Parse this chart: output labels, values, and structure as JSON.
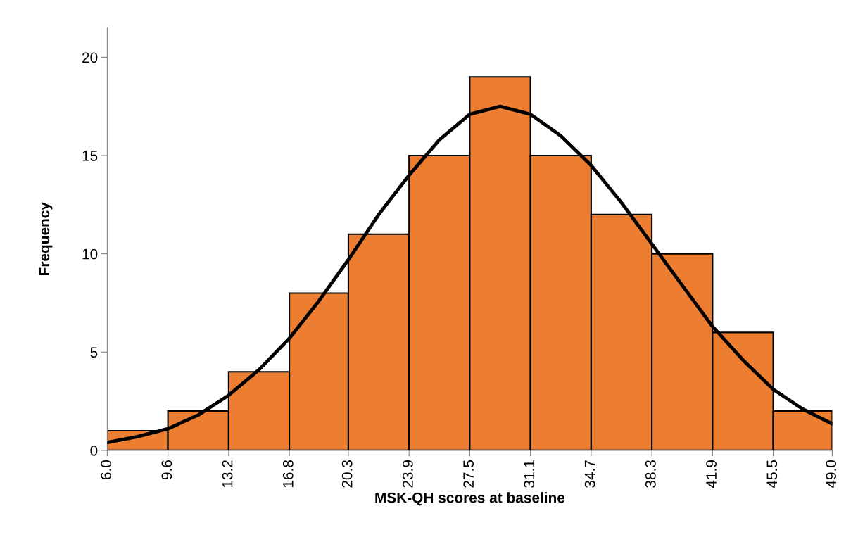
{
  "chart_data": {
    "type": "histogram",
    "xlabel": "MSK-QH scores at baseline",
    "ylabel": "Frequency",
    "bins": [
      6.0,
      9.6,
      13.2,
      16.8,
      20.3,
      23.9,
      27.5,
      31.1,
      34.7,
      38.3,
      41.9,
      45.5,
      49.0
    ],
    "series": [
      {
        "type": "histogram",
        "color": "#ed7d31",
        "values": [
          1,
          2,
          4,
          8,
          11,
          15,
          19,
          15,
          12,
          10,
          6,
          2
        ]
      },
      {
        "type": "line",
        "color": "#000000",
        "x": [
          6.0,
          7.8,
          9.6,
          11.4,
          13.2,
          15.0,
          16.8,
          18.55,
          20.3,
          22.1,
          23.9,
          25.7,
          27.5,
          29.3,
          31.1,
          32.9,
          34.7,
          36.5,
          38.3,
          40.1,
          41.9,
          43.7,
          45.5,
          47.25,
          49.0
        ],
        "values": [
          0.4,
          0.7,
          1.1,
          1.8,
          2.8,
          4.1,
          5.7,
          7.6,
          9.7,
          12.0,
          14.0,
          15.8,
          17.1,
          17.5,
          17.1,
          16.0,
          14.5,
          12.6,
          10.5,
          8.4,
          6.3,
          4.6,
          3.1,
          2.1,
          1.35
        ]
      }
    ],
    "xlim": [
      6.0,
      49.0
    ],
    "xticks": [
      {
        "value": 6.0,
        "label": "6.0"
      },
      9.6,
      13.2,
      16.8,
      20.3,
      23.9,
      27.5,
      31.1,
      34.7,
      38.3,
      41.9,
      45.5,
      {
        "value": 49.0,
        "label": "49.0"
      }
    ],
    "ylim": [
      0,
      21.5
    ],
    "yticks": [
      0,
      5,
      10,
      15,
      20
    ],
    "grid": false,
    "legend": false,
    "marker": "none",
    "line_style": "solid"
  }
}
